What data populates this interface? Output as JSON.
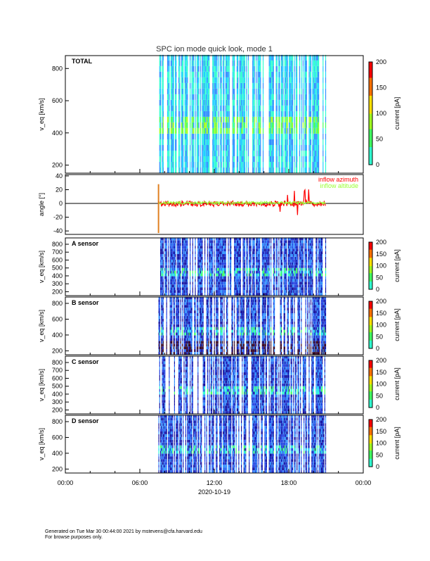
{
  "title": "SPC ion mode quick look, mode 1",
  "footer": {
    "line1": "Generated on Tue Mar 30 00:44:00 2021 by mstevens@cfa.harvard.edu",
    "line2": "For browse purposes only."
  },
  "chart_data": {
    "type": "heatmap",
    "xlabel": "2020-10-19",
    "x_ticks": [
      "00:00",
      "06:00",
      "12:00",
      "18:00",
      "00:00"
    ],
    "x_range_hours": [
      0,
      24
    ],
    "data_range_hours": [
      7.5,
      21.0
    ],
    "panels": [
      {
        "label": "TOTAL",
        "ylabel": "v_eq [km/s]",
        "y_ticks": [
          200,
          400,
          600,
          800
        ],
        "ylim": [
          150,
          880
        ],
        "cbar_label": "current [pA]",
        "cbar_ticks": [
          0,
          50,
          100,
          150,
          200
        ]
      },
      {
        "label": "A sensor",
        "ylabel": "v_eq [km/s]",
        "y_ticks": [
          200,
          300,
          400,
          500,
          600,
          700,
          800
        ],
        "ylim": [
          150,
          880
        ],
        "cbar_label": "current [pA]",
        "cbar_ticks": [
          0,
          50,
          100,
          150,
          200
        ]
      },
      {
        "label": "B sensor",
        "ylabel": "v_eq [km/s]",
        "y_ticks": [
          200,
          400,
          600,
          800
        ],
        "ylim": [
          150,
          880
        ],
        "cbar_label": "current [pA]",
        "cbar_ticks": [
          0,
          50,
          100,
          150,
          200
        ]
      },
      {
        "label": "C sensor",
        "ylabel": "v_eq [km/s]",
        "y_ticks": [
          200,
          300,
          400,
          500,
          600,
          700,
          800
        ],
        "ylim": [
          150,
          880
        ],
        "cbar_label": "current [pA]",
        "cbar_ticks": [
          0,
          50,
          100,
          150,
          200
        ]
      },
      {
        "label": "D sensor",
        "ylabel": "v_eq [km/s]",
        "y_ticks": [
          200,
          400,
          600,
          800
        ],
        "ylim": [
          150,
          880
        ],
        "cbar_label": "current [pA]",
        "cbar_ticks": [
          0,
          50,
          100,
          150,
          200
        ]
      }
    ],
    "angle_panel": {
      "ylabel": "angle [°]",
      "y_ticks": [
        -40,
        -20,
        0,
        20,
        40
      ],
      "ylim": [
        -45,
        42
      ],
      "series": [
        {
          "name": "inflow azimuth",
          "color": "#ff0000"
        },
        {
          "name": "inflow altitude",
          "color": "#99ff33"
        }
      ]
    }
  }
}
